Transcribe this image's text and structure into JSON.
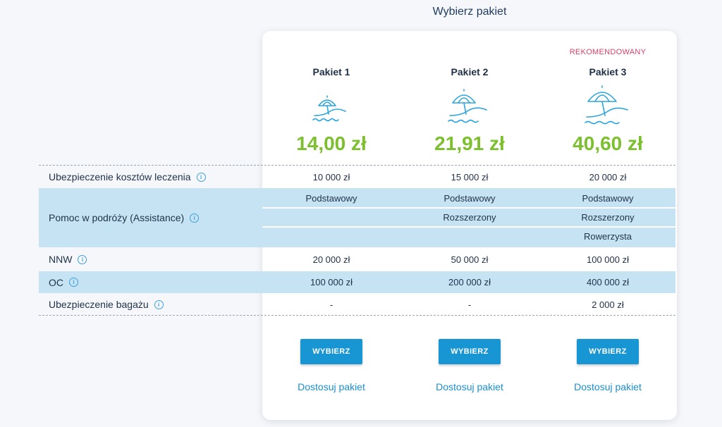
{
  "page": {
    "title": "Wybierz pakiet"
  },
  "packages": [
    {
      "name": "Pakiet 1",
      "price": "14,00 zł",
      "badge": "",
      "button": "WYBIERZ",
      "link": "Dostosuj pakiet",
      "icon": "beach-umbrella-icon"
    },
    {
      "name": "Pakiet 2",
      "price": "21,91 zł",
      "badge": "",
      "button": "WYBIERZ",
      "link": "Dostosuj pakiet",
      "icon": "beach-umbrella-icon"
    },
    {
      "name": "Pakiet 3",
      "price": "40,60 zł",
      "badge": "REKOMENDOWANY",
      "button": "WYBIERZ",
      "link": "Dostosuj pakiet",
      "icon": "beach-umbrella-icon"
    }
  ],
  "rows": {
    "medical": {
      "label": "Ubezpieczenie kosztów leczenia",
      "values": [
        "10 000 zł",
        "15 000 zł",
        "20 000 zł"
      ]
    },
    "assistance": {
      "label": "Pomoc w podróży (Assistance)",
      "values": [
        [
          "Podstawowy"
        ],
        [
          "Podstawowy",
          "Rozszerzony"
        ],
        [
          "Podstawowy",
          "Rozszerzony",
          "Rowerzysta"
        ]
      ]
    },
    "nnw": {
      "label": "NNW",
      "values": [
        "20 000 zł",
        "50 000 zł",
        "100 000 zł"
      ]
    },
    "oc": {
      "label": "OC",
      "values": [
        "100 000 zł",
        "200 000 zł",
        "400 000 zł"
      ]
    },
    "luggage": {
      "label": "Ubezpieczenie bagażu",
      "values": [
        "-",
        "-",
        "2 000 zł"
      ]
    }
  },
  "colors": {
    "accent": "#1896d3",
    "price": "#7cbf2f",
    "badge": "#d5426b",
    "rowBlue": "#c6e3f4"
  }
}
